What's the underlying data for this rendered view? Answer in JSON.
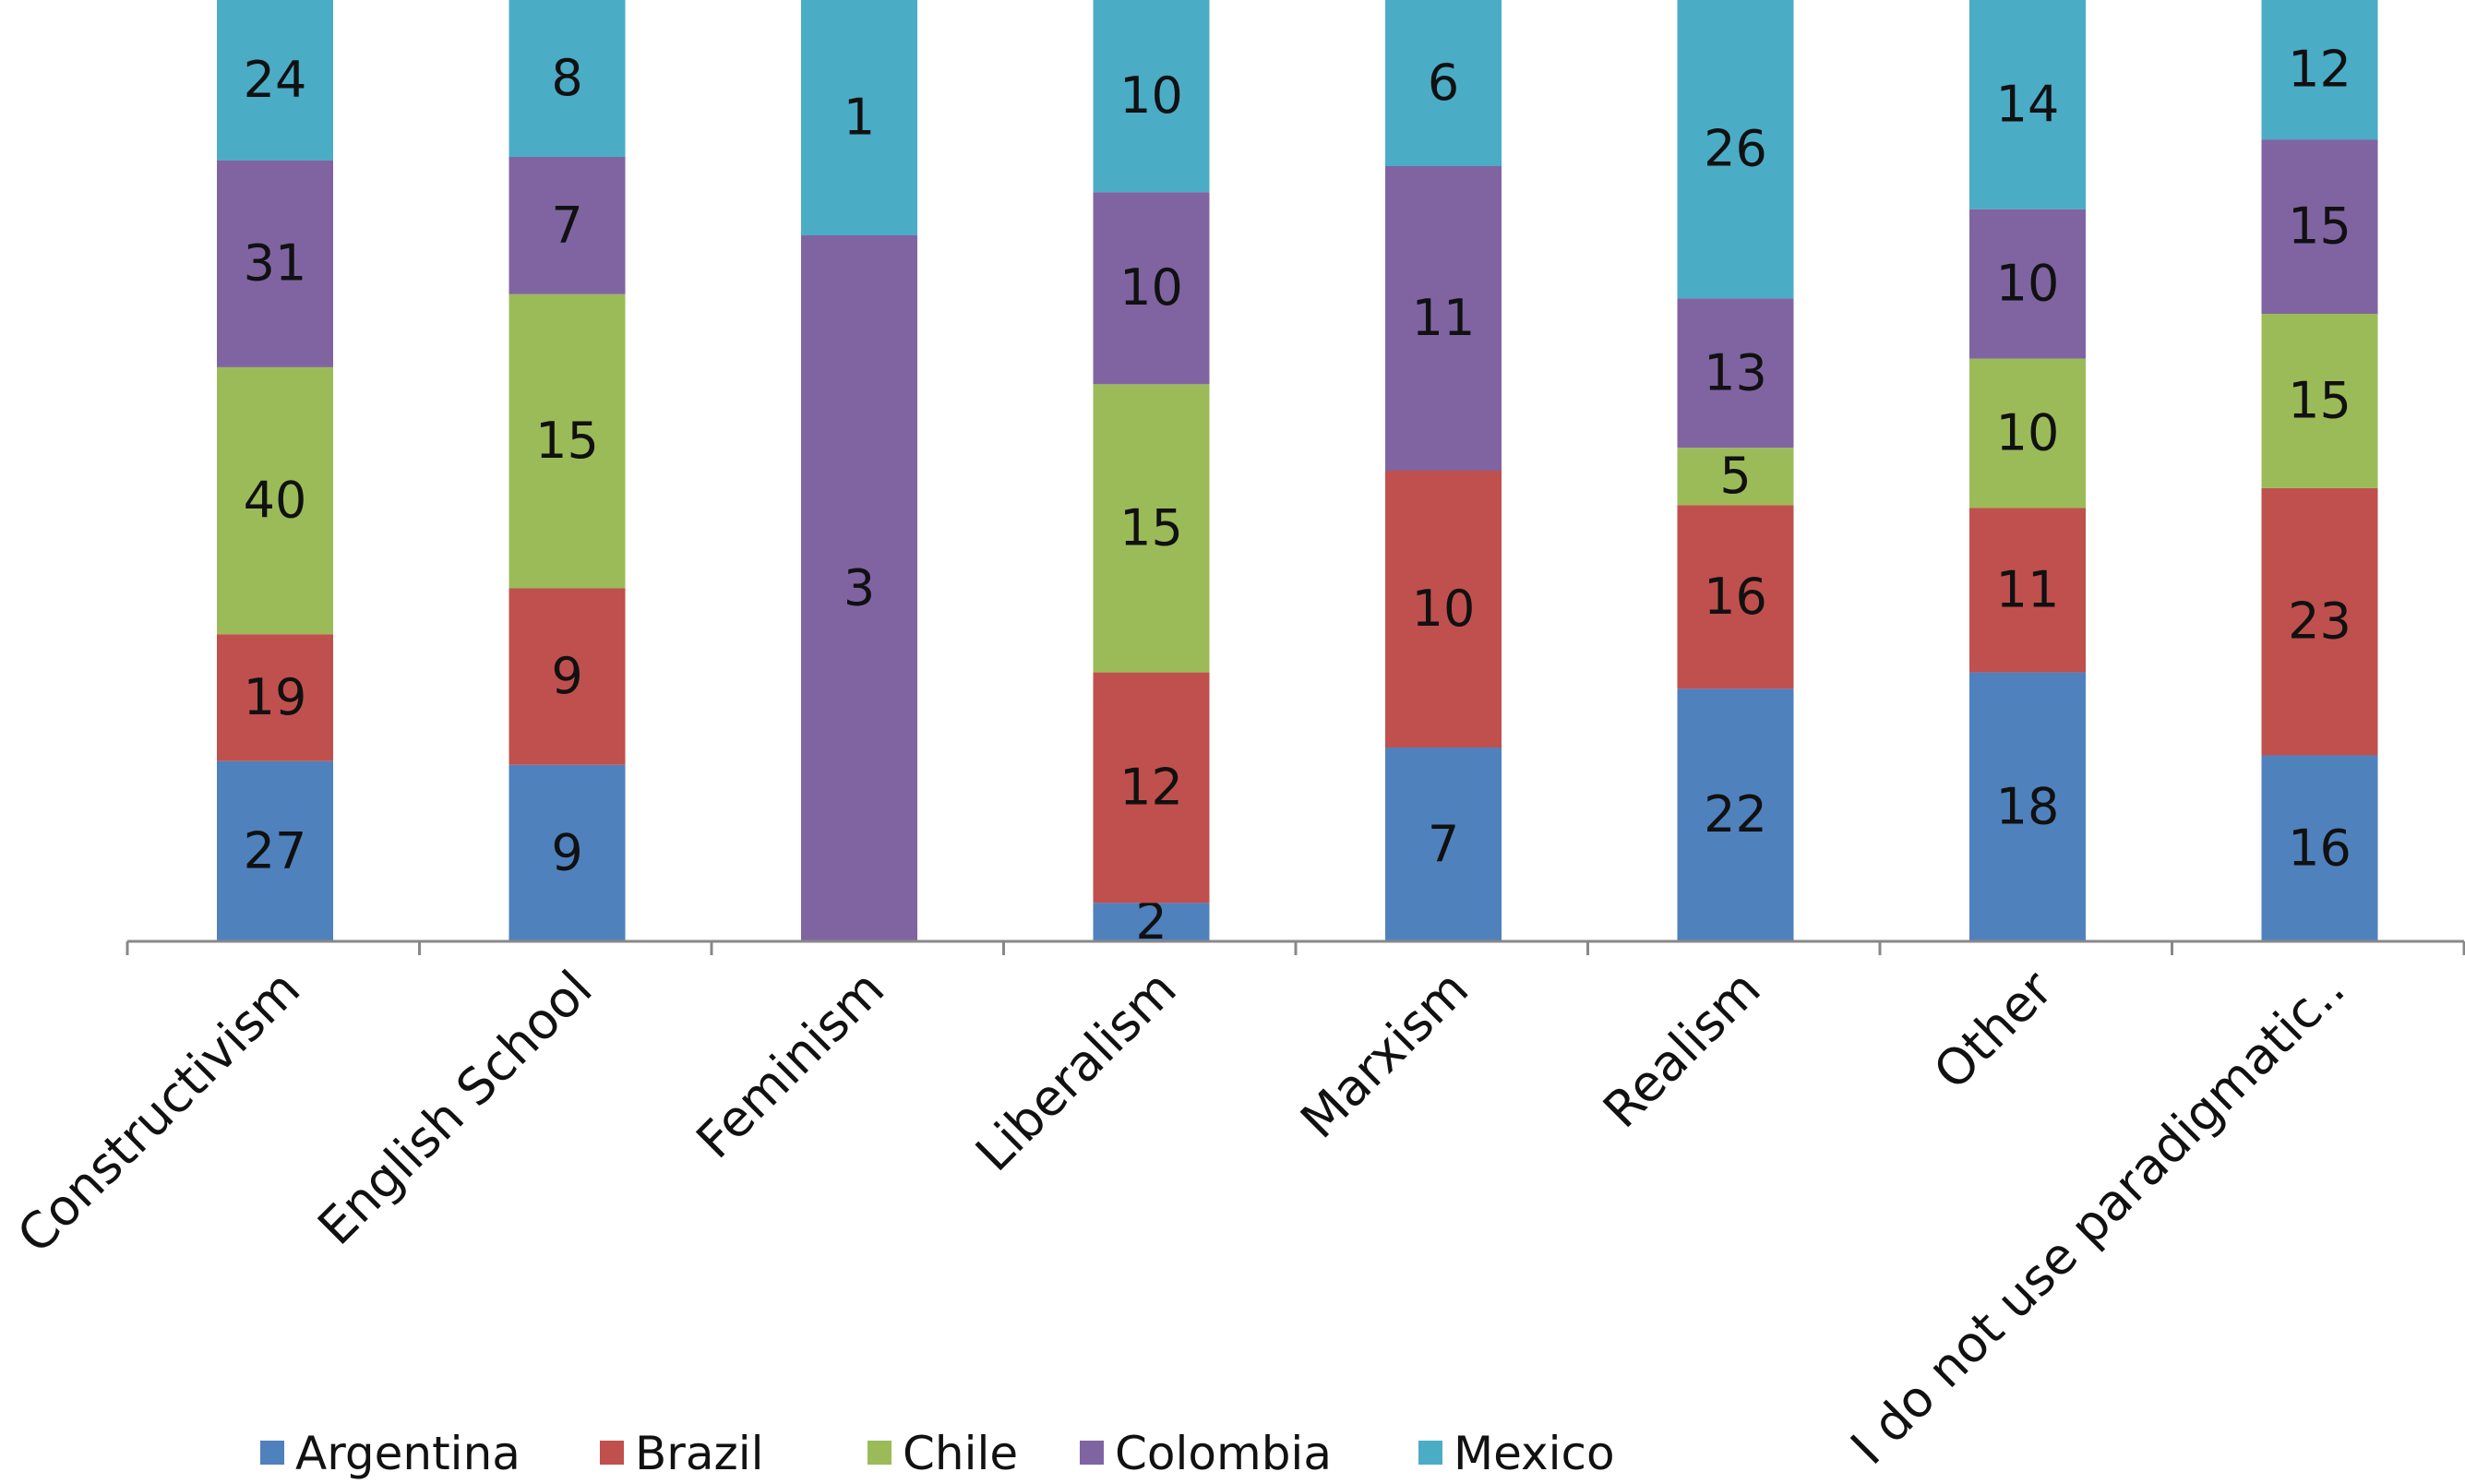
{
  "chart_data": {
    "type": "bar",
    "stacked": true,
    "percent_stacked": true,
    "title": "",
    "xlabel": "",
    "ylabel": "",
    "categories": [
      "Constructivism",
      "English School",
      "Feminism",
      "Liberalism",
      "Marxism",
      "Realism",
      "Other",
      "I do not use paradigmatic.."
    ],
    "series": [
      {
        "name": "Argentina",
        "color": "#4F81BD",
        "values": [
          27,
          9,
          0,
          2,
          7,
          22,
          18,
          16
        ]
      },
      {
        "name": "Brazil",
        "color": "#C0504D",
        "values": [
          19,
          9,
          0,
          12,
          10,
          16,
          11,
          23
        ]
      },
      {
        "name": "Chile",
        "color": "#9BBB59",
        "values": [
          40,
          15,
          0,
          15,
          0,
          5,
          10,
          15
        ]
      },
      {
        "name": "Colombia",
        "color": "#8064A2",
        "values": [
          31,
          7,
          3,
          10,
          11,
          13,
          10,
          15
        ]
      },
      {
        "name": "Mexico",
        "color": "#4BACC6",
        "values": [
          24,
          8,
          1,
          10,
          6,
          26,
          14,
          12
        ]
      }
    ],
    "legend_position": "bottom",
    "grid": false
  }
}
